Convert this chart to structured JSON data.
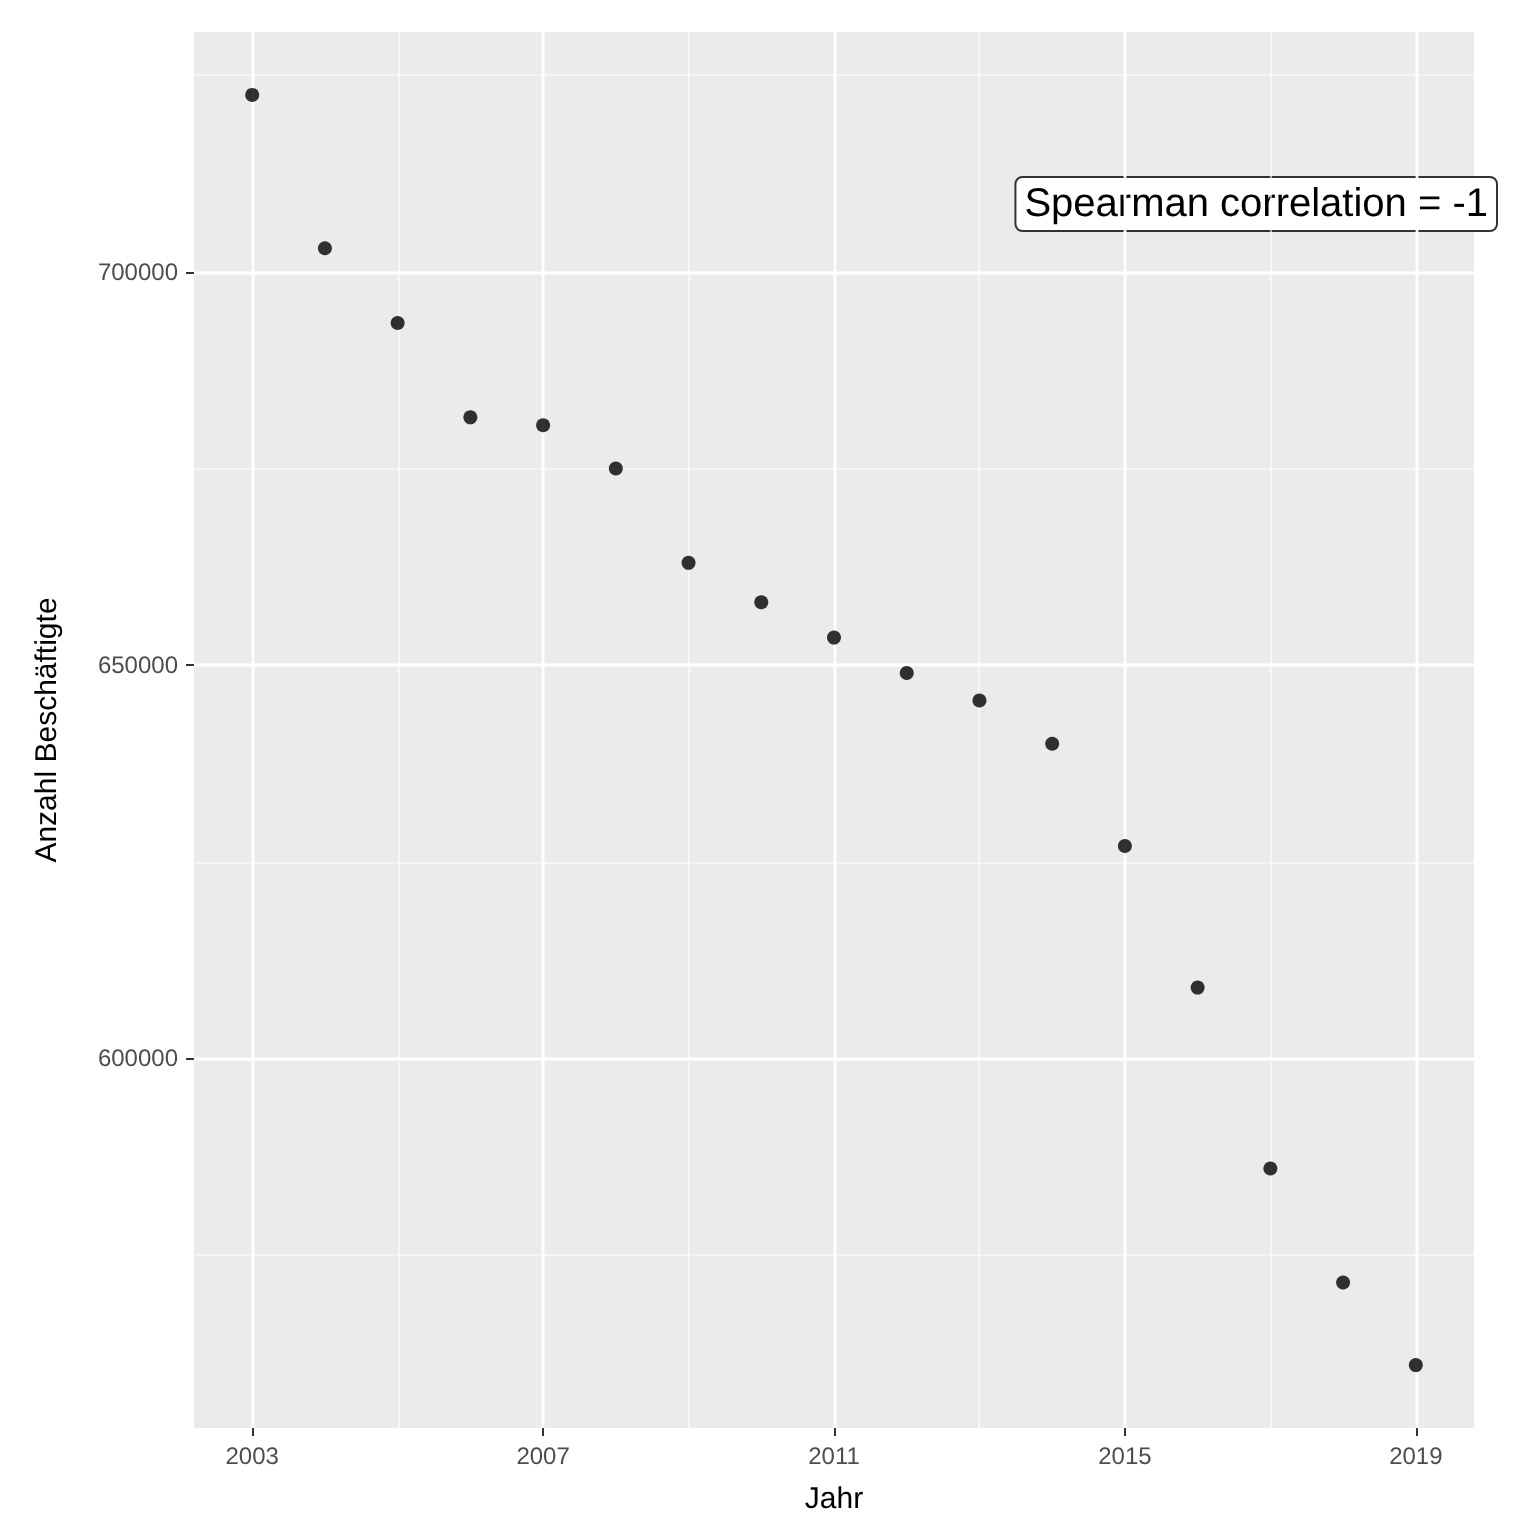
{
  "chart_data": {
    "type": "scatter",
    "xlabel": "Jahr",
    "ylabel": "Anzahl Beschäftigte",
    "annotations": [
      "Spearman correlation = -1"
    ],
    "x": [
      2003,
      2004,
      2005,
      2006,
      2007,
      2008,
      2009,
      2010,
      2011,
      2012,
      2013,
      2014,
      2015,
      2016,
      2017,
      2018,
      2019
    ],
    "series": [
      {
        "color": "#000000",
        "values": [
          722500,
          703000,
          693500,
          681500,
          680500,
          675000,
          663000,
          658000,
          653500,
          649000,
          645500,
          640000,
          627000,
          609000,
          586000,
          571500,
          561000
        ]
      }
    ],
    "xlim": [
      2002.2,
      2019.8
    ],
    "xticks": [
      2003,
      {
        "value": 2005,
        "label": null
      },
      2007,
      {
        "value": 2009,
        "label": null
      },
      2011,
      {
        "value": 2013,
        "label": null
      },
      2015,
      {
        "value": 2017,
        "label": null
      },
      2019
    ],
    "ylim": [
      553000,
      730500
    ],
    "yticks": [
      {
        "value": 575000,
        "label": null
      },
      600000,
      {
        "value": 625000,
        "label": null
      },
      650000,
      {
        "value": 675000,
        "label": null
      },
      700000,
      {
        "value": 725000,
        "label": null
      }
    ],
    "grid": true,
    "marker": "circle"
  }
}
